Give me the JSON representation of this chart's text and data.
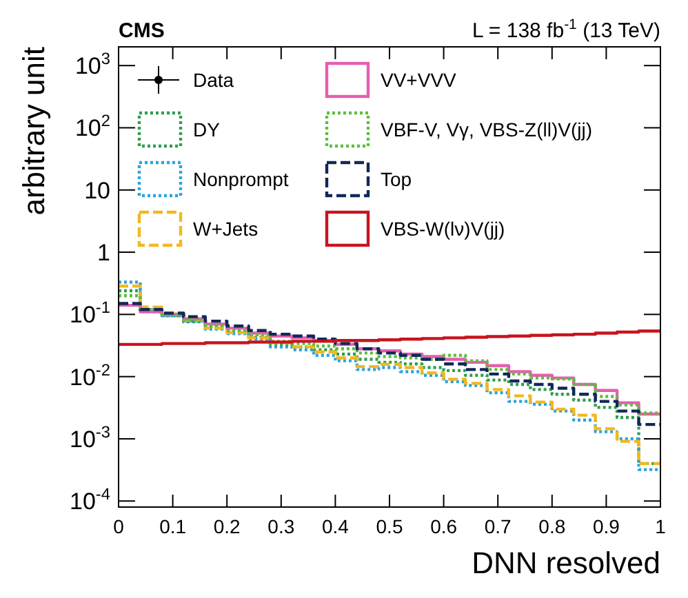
{
  "chart_data": {
    "type": "histogram",
    "title": "CMS",
    "subtitle": "L = 138 fb$^{-1}$ (13 TeV)",
    "xlabel": "DNN resolved",
    "ylabel": "arbitrary unit",
    "log": "y",
    "bins": [
      0,
      0.04,
      0.08,
      0.12,
      0.16,
      0.2,
      0.24,
      0.28,
      0.32,
      0.36,
      0.4,
      0.44,
      0.48,
      0.52,
      0.56,
      0.6,
      0.64,
      0.68,
      0.72,
      0.76,
      0.8,
      0.84,
      0.88,
      0.92,
      0.96,
      1
    ],
    "xlim": [
      0,
      1
    ],
    "xticks": [
      0,
      0.1,
      0.2,
      0.3,
      0.4,
      0.5,
      0.6,
      0.7,
      0.8,
      0.9,
      1
    ],
    "ylim": [
      8e-05,
      2000
    ],
    "yticks": [
      {
        "value": 0.0001,
        "label": "10$^{-4}$"
      },
      {
        "value": 0.001,
        "label": "10$^{-3}$"
      },
      {
        "value": 0.01,
        "label": "10$^{-2}$"
      },
      {
        "value": 0.1,
        "label": "10$^{-1}$"
      },
      1,
      10,
      {
        "value": 100,
        "label": "10$^{2}$"
      },
      {
        "value": 1000,
        "label": "10$^{3}$"
      }
    ],
    "grid": false,
    "legend": "top",
    "series": [
      {
        "name": "Data",
        "type": "scatter",
        "marker": "circle",
        "color": "#000000",
        "values": [
          null,
          null,
          null,
          null,
          null,
          null,
          null,
          null,
          null,
          null,
          null,
          null,
          null,
          null,
          null,
          null,
          null,
          null,
          null,
          null,
          null,
          null,
          null,
          null,
          null
        ]
      },
      {
        "name": "DY",
        "color": "#2e9e4f",
        "line_style": "dotted",
        "values": [
          0.24,
          0.11,
          0.095,
          0.076,
          0.063,
          0.053,
          0.043,
          0.033,
          0.03,
          0.027,
          0.023,
          0.019,
          0.017,
          0.016,
          0.014,
          0.0125,
          0.0105,
          0.0088,
          0.0075,
          0.0062,
          0.0052,
          0.0042,
          0.0032,
          0.0022,
          0.0004
        ]
      },
      {
        "name": "Nonprompt",
        "color": "#2aa3e0",
        "line_style": "dotted",
        "values": [
          0.33,
          0.12,
          0.095,
          0.078,
          0.058,
          0.049,
          0.04,
          0.03,
          0.027,
          0.022,
          0.018,
          0.013,
          0.014,
          0.012,
          0.0105,
          0.0083,
          0.0072,
          0.0055,
          0.004,
          0.0036,
          0.0028,
          0.002,
          0.0013,
          0.001,
          0.00032
        ]
      },
      {
        "name": "W+Jets",
        "color": "#f2b81f",
        "line_style": "dashed",
        "values": [
          0.285,
          0.131,
          0.102,
          0.081,
          0.06,
          0.051,
          0.042,
          0.035,
          0.03,
          0.025,
          0.02,
          0.0145,
          0.0158,
          0.014,
          0.0115,
          0.0091,
          0.0078,
          0.0062,
          0.0049,
          0.0039,
          0.003,
          0.0024,
          0.00145,
          0.00091,
          0.0004
        ]
      },
      {
        "name": "VV+VVV",
        "color": "#e55fb0",
        "line_style": "solid",
        "values": [
          0.14,
          0.11,
          0.1,
          0.085,
          0.07,
          0.06,
          0.05,
          0.045,
          0.042,
          0.038,
          0.033,
          0.028,
          0.026,
          0.023,
          0.021,
          0.019,
          0.017,
          0.015,
          0.012,
          0.0105,
          0.0095,
          0.0075,
          0.006,
          0.0038,
          0.0025
        ]
      },
      {
        "name": "VBF-V, Vγ, VBS-Z(ll)V(jj)",
        "color": "#5cbf3a",
        "line_style": "dotted",
        "values": [
          0.2,
          0.12,
          0.098,
          0.082,
          0.066,
          0.055,
          0.047,
          0.037,
          0.034,
          0.031,
          0.028,
          0.024,
          0.021,
          0.02,
          0.019,
          0.022,
          0.018,
          0.013,
          0.011,
          0.0095,
          0.0092,
          0.0075,
          0.0048,
          0.0035,
          0.0026
        ]
      },
      {
        "name": "Top",
        "color": "#10285a",
        "line_style": "dashed",
        "values": [
          0.15,
          0.12,
          0.105,
          0.092,
          0.078,
          0.065,
          0.055,
          0.048,
          0.045,
          0.04,
          0.034,
          0.028,
          0.024,
          0.022,
          0.019,
          0.016,
          0.013,
          0.011,
          0.0085,
          0.0075,
          0.0065,
          0.0052,
          0.004,
          0.0028,
          0.0017
        ]
      },
      {
        "name": "VBS-W(lν)V(jj)",
        "color": "#c8141e",
        "line_style": "solid",
        "values": [
          0.033,
          0.033,
          0.034,
          0.034,
          0.035,
          0.035,
          0.036,
          0.036,
          0.037,
          0.037,
          0.038,
          0.038,
          0.039,
          0.04,
          0.041,
          0.042,
          0.043,
          0.044,
          0.045,
          0.046,
          0.047,
          0.048,
          0.05,
          0.052,
          0.054
        ]
      }
    ]
  }
}
